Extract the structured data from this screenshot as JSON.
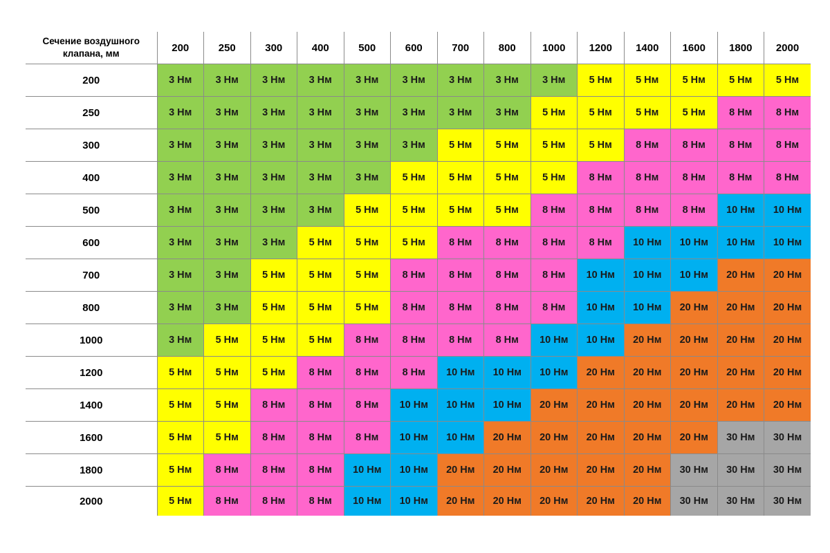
{
  "table": {
    "corner_header": "Сечение воздушного клапана, мм",
    "columns": [
      "200",
      "250",
      "300",
      "400",
      "500",
      "600",
      "700",
      "800",
      "1000",
      "1200",
      "1400",
      "1600",
      "1800",
      "2000"
    ],
    "unit": "Нм",
    "color_map": {
      "3": "#92d050",
      "5": "#ffff00",
      "8": "#ff66cc",
      "10": "#00b0f0",
      "20": "#f07a28",
      "30": "#a6a6a6"
    },
    "rows": [
      {
        "label": "200",
        "values": [
          3,
          3,
          3,
          3,
          3,
          3,
          3,
          3,
          3,
          5,
          5,
          5,
          5,
          5
        ]
      },
      {
        "label": "250",
        "values": [
          3,
          3,
          3,
          3,
          3,
          3,
          3,
          3,
          5,
          5,
          5,
          5,
          8,
          8
        ]
      },
      {
        "label": "300",
        "values": [
          3,
          3,
          3,
          3,
          3,
          3,
          5,
          5,
          5,
          5,
          8,
          8,
          8,
          8
        ]
      },
      {
        "label": "400",
        "values": [
          3,
          3,
          3,
          3,
          3,
          5,
          5,
          5,
          5,
          8,
          8,
          8,
          8,
          8
        ]
      },
      {
        "label": "500",
        "values": [
          3,
          3,
          3,
          3,
          5,
          5,
          5,
          5,
          8,
          8,
          8,
          8,
          10,
          10
        ]
      },
      {
        "label": "600",
        "values": [
          3,
          3,
          3,
          5,
          5,
          5,
          8,
          8,
          8,
          8,
          10,
          10,
          10,
          10
        ]
      },
      {
        "label": "700",
        "values": [
          3,
          3,
          5,
          5,
          5,
          8,
          8,
          8,
          8,
          10,
          10,
          10,
          20,
          20
        ]
      },
      {
        "label": "800",
        "values": [
          3,
          3,
          5,
          5,
          5,
          8,
          8,
          8,
          8,
          10,
          10,
          20,
          20,
          20
        ]
      },
      {
        "label": "1000",
        "values": [
          3,
          5,
          5,
          5,
          8,
          8,
          8,
          8,
          10,
          10,
          20,
          20,
          20,
          20
        ]
      },
      {
        "label": "1200",
        "values": [
          5,
          5,
          5,
          8,
          8,
          8,
          10,
          10,
          10,
          20,
          20,
          20,
          20,
          20
        ]
      },
      {
        "label": "1400",
        "values": [
          5,
          5,
          8,
          8,
          8,
          10,
          10,
          10,
          20,
          20,
          20,
          20,
          20,
          20
        ]
      },
      {
        "label": "1600",
        "values": [
          5,
          5,
          8,
          8,
          8,
          10,
          10,
          20,
          20,
          20,
          20,
          20,
          30,
          30
        ]
      },
      {
        "label": "1800",
        "values": [
          5,
          8,
          8,
          8,
          10,
          10,
          20,
          20,
          20,
          20,
          20,
          30,
          30,
          30
        ]
      },
      {
        "label": "2000",
        "values": [
          5,
          8,
          8,
          8,
          10,
          10,
          20,
          20,
          20,
          20,
          20,
          30,
          30,
          30
        ]
      }
    ]
  }
}
